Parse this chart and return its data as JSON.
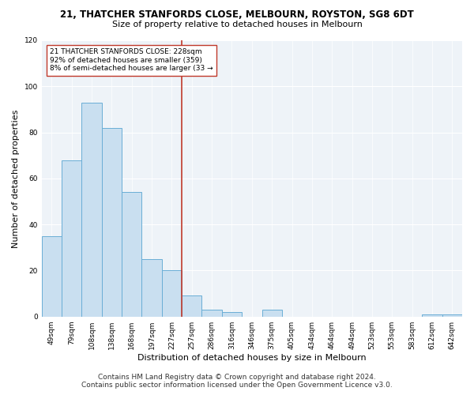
{
  "title": "21, THATCHER STANFORDS CLOSE, MELBOURN, ROYSTON, SG8 6DT",
  "subtitle": "Size of property relative to detached houses in Melbourn",
  "xlabel": "Distribution of detached houses by size in Melbourn",
  "ylabel": "Number of detached properties",
  "categories": [
    "49sqm",
    "79sqm",
    "108sqm",
    "138sqm",
    "168sqm",
    "197sqm",
    "227sqm",
    "257sqm",
    "286sqm",
    "316sqm",
    "346sqm",
    "375sqm",
    "405sqm",
    "434sqm",
    "464sqm",
    "494sqm",
    "523sqm",
    "553sqm",
    "583sqm",
    "612sqm",
    "642sqm"
  ],
  "values": [
    35,
    68,
    93,
    82,
    54,
    25,
    20,
    9,
    3,
    2,
    0,
    3,
    0,
    0,
    0,
    0,
    0,
    0,
    0,
    1,
    1
  ],
  "bar_color": "#c9dff0",
  "bar_edge_color": "#6aaed6",
  "ref_line_color": "#c0392b",
  "ref_line_index": 6.5,
  "annotation_line1": "21 THATCHER STANFORDS CLOSE: 228sqm",
  "annotation_line2": "92% of detached houses are smaller (359)",
  "annotation_line3": "8% of semi-detached houses are larger (33 →",
  "annotation_box_color": "#ffffff",
  "annotation_box_edge_color": "#c0392b",
  "ylim": [
    0,
    120
  ],
  "yticks": [
    0,
    20,
    40,
    60,
    80,
    100,
    120
  ],
  "footer_line1": "Contains HM Land Registry data © Crown copyright and database right 2024.",
  "footer_line2": "Contains public sector information licensed under the Open Government Licence v3.0.",
  "bg_color": "#ffffff",
  "plot_bg_color": "#eef3f8",
  "title_fontsize": 8.5,
  "subtitle_fontsize": 8,
  "label_fontsize": 8,
  "tick_fontsize": 6.5,
  "annotation_fontsize": 6.5,
  "footer_fontsize": 6.5
}
